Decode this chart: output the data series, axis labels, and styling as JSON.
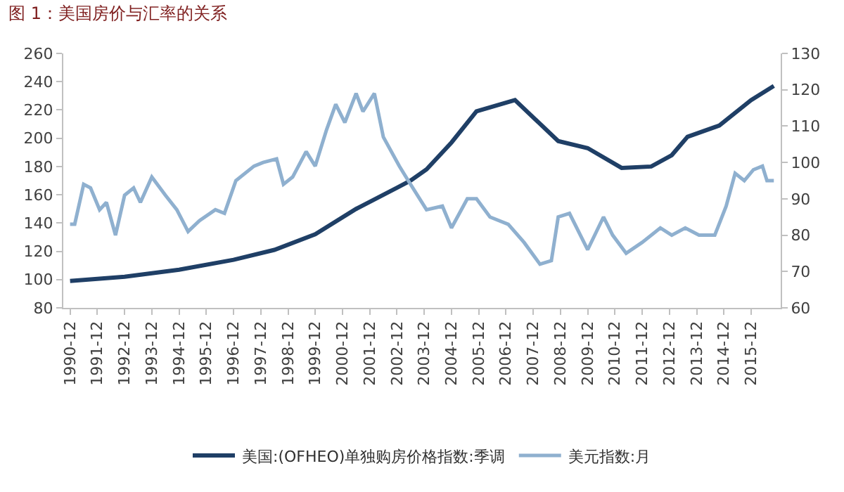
{
  "chart_data": {
    "type": "line",
    "title": "图 1：美国房价与汇率的关系",
    "series": [
      {
        "name": "美国:(OFHEO)单独购房价格指数:季调",
        "color": "#1f3f66",
        "x": [
          "1990-12",
          "1992-12",
          "1994-12",
          "1996-12",
          "1998-06",
          "1999-12",
          "2001-06",
          "2002-12",
          "2003-06",
          "2004-01",
          "2004-12",
          "2005-11",
          "2007-04",
          "2008-11",
          "2009-12",
          "2011-03",
          "2012-04",
          "2013-01",
          "2013-08",
          "2014-10",
          "2015-12",
          "2016-10"
        ],
        "values": [
          99,
          102,
          107,
          114,
          121,
          132,
          150,
          165,
          170,
          178,
          197,
          219,
          227,
          198,
          193,
          179,
          180,
          188,
          201,
          209,
          227,
          237
        ]
      },
      {
        "name": "美元指数:月",
        "color": "#8fb0cf",
        "axis": "y2",
        "x": [
          "1990-12",
          "1991-02",
          "1991-06",
          "1991-09",
          "1992-01",
          "1992-04",
          "1992-08",
          "1992-12",
          "1993-04",
          "1993-07",
          "1993-12",
          "1994-06",
          "1994-11",
          "1995-04",
          "1995-09",
          "1996-04",
          "1996-08",
          "1997-01",
          "1997-09",
          "1998-01",
          "1998-07",
          "1998-10",
          "1999-02",
          "1999-08",
          "1999-12",
          "2000-05",
          "2000-09",
          "2001-01",
          "2001-06",
          "2001-09",
          "2002-02",
          "2002-06",
          "2003-01",
          "2003-05",
          "2004-01",
          "2004-08",
          "2004-12",
          "2005-07",
          "2005-11",
          "2006-05",
          "2007-01",
          "2007-08",
          "2008-03",
          "2008-08",
          "2008-11",
          "2009-04",
          "2009-12",
          "2010-07",
          "2010-11",
          "2011-05",
          "2011-12",
          "2012-08",
          "2013-01",
          "2013-07",
          "2014-01",
          "2014-08",
          "2015-01",
          "2015-05",
          "2015-09",
          "2016-01",
          "2016-05",
          "2016-07",
          "2016-10"
        ],
        "values": [
          83,
          83,
          94,
          93,
          87,
          89,
          80,
          91,
          93,
          89,
          96,
          91,
          87,
          81,
          84,
          87,
          86,
          95,
          99,
          100,
          101,
          94,
          96,
          103,
          99,
          109,
          116,
          111,
          119,
          114,
          119,
          107,
          99,
          95,
          87,
          88,
          82,
          90,
          90,
          85,
          83,
          78,
          72,
          73,
          85,
          86,
          76,
          85,
          80,
          75,
          78,
          82,
          80,
          82,
          80,
          80,
          88,
          97,
          95,
          98,
          99,
          95,
          95
        ]
      }
    ],
    "xlim": [
      "1990-09",
      "2017-01"
    ],
    "xticks": [
      "1990-12",
      "1991-12",
      "1992-12",
      "1993-12",
      "1994-12",
      "1995-12",
      "1996-12",
      "1997-12",
      "1998-12",
      "1999-12",
      "2000-12",
      "2001-12",
      "2002-12",
      "2003-12",
      "2004-12",
      "2005-12",
      "2006-12",
      "2007-12",
      "2008-12",
      "2009-12",
      "2010-12",
      "2011-12",
      "2012-12",
      "2013-12",
      "2014-12",
      "2015-12"
    ],
    "ylim": [
      80,
      260
    ],
    "yticks": [
      80,
      100,
      120,
      140,
      160,
      180,
      200,
      220,
      240,
      260
    ],
    "y2lim": [
      60,
      130
    ],
    "y2ticks": [
      60,
      70,
      80,
      90,
      100,
      110,
      120,
      130
    ],
    "legend": "bottom",
    "marker": "none",
    "line_style": "solid"
  }
}
